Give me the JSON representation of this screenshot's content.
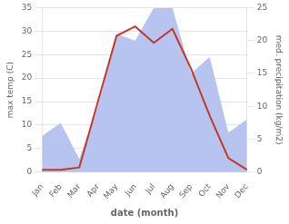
{
  "chart_data": {
    "type": "line",
    "xlabel": "date (month)",
    "ylabel": "max temp (C)",
    "y2label": "med. precipitation (kg/m2)",
    "categories": [
      "Jan",
      "Feb",
      "Mar",
      "Apr",
      "May",
      "Jun",
      "Jul",
      "Aug",
      "Sep",
      "Oct",
      "Nov",
      "Dec"
    ],
    "series": [
      {
        "type": "line",
        "color": "#c0392b",
        "values": [
          0.5,
          0.5,
          1.0,
          15.0,
          29.0,
          31.0,
          27.5,
          30.5,
          22.0,
          12.0,
          3.0,
          0.5
        ]
      },
      {
        "type": "area",
        "axis": "y2",
        "color": "#b8c4f0",
        "values": [
          5.5,
          7.5,
          2.0,
          10.0,
          21.0,
          20.0,
          25.0,
          25.0,
          15.0,
          17.5,
          6.0,
          8.0
        ]
      }
    ],
    "ylim": [
      0,
      35
    ],
    "yticks": [
      0,
      5,
      10,
      15,
      20,
      25,
      30,
      35
    ],
    "y2lim": [
      0,
      25
    ],
    "y2ticks": [
      0,
      5,
      10,
      15,
      20,
      25
    ],
    "grid": true
  }
}
